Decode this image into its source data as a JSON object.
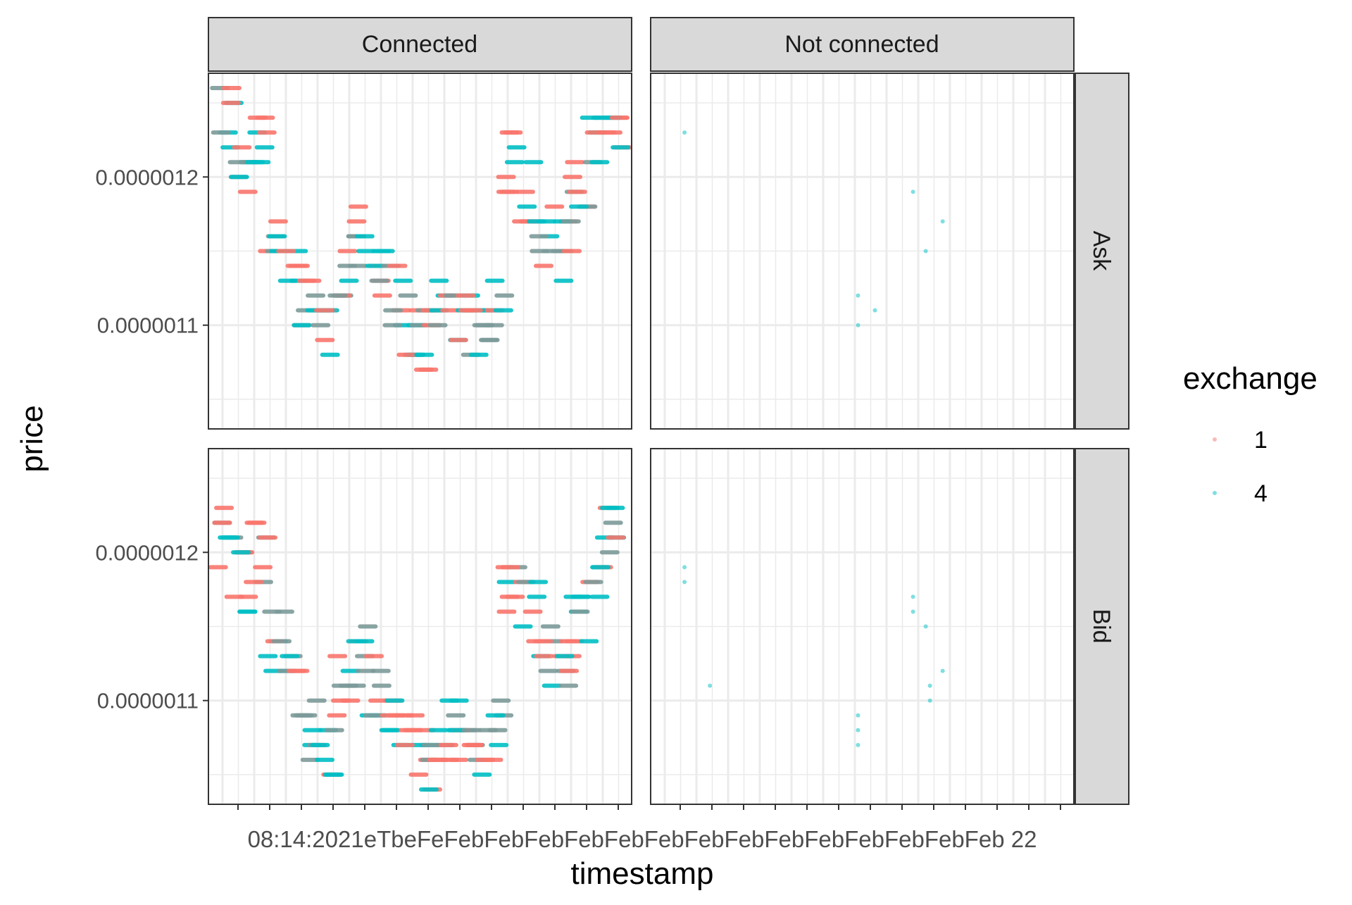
{
  "chart_data": {
    "type": "scatter",
    "facets": {
      "columns": [
        "Connected",
        "Not connected"
      ],
      "rows": [
        "Ask",
        "Bid"
      ]
    },
    "xlabel": "timestamp",
    "ylabel": "price",
    "y_tick_labels": [
      "0.0000011",
      "0.0000012"
    ],
    "y_ticks": [
      1.1e-06,
      1.2e-06
    ],
    "ylim": [
      1.03e-06,
      1.27e-06
    ],
    "x_axis_text": "08:14:2021eTbeFeFebFebFebFebFebFebFebFebFebFebFebFebFebFeb 22",
    "legend": {
      "title": "exchange",
      "entries": [
        {
          "label": "1",
          "color": "#F8766D"
        },
        {
          "label": "4",
          "color": "#00BFC4"
        }
      ],
      "position": "right"
    },
    "colors": {
      "exchange_1": "#F8766D",
      "exchange_4": "#00BFC4",
      "overlap": "#7C9A99"
    },
    "grid": true,
    "series_note_points": [
      {
        "panel": "Not connected / Ask",
        "exchange": "4",
        "points": [
          [
            0.08,
            1.23e-06
          ],
          [
            0.62,
            1.19e-06
          ],
          [
            0.65,
            1.15e-06
          ],
          [
            0.69,
            1.17e-06
          ],
          [
            0.49,
            1.12e-06
          ],
          [
            0.49,
            1.1e-06
          ],
          [
            0.53,
            1.11e-06
          ]
        ]
      },
      {
        "panel": "Not connected / Bid",
        "exchange": "4",
        "points": [
          [
            0.08,
            1.19e-06
          ],
          [
            0.08,
            1.18e-06
          ],
          [
            0.14,
            1.11e-06
          ],
          [
            0.49,
            1.09e-06
          ],
          [
            0.49,
            1.08e-06
          ],
          [
            0.49,
            1.07e-06
          ],
          [
            0.62,
            1.17e-06
          ],
          [
            0.62,
            1.16e-06
          ],
          [
            0.65,
            1.15e-06
          ],
          [
            0.66,
            1.11e-06
          ],
          [
            0.66,
            1.1e-06
          ],
          [
            0.69,
            1.12e-06
          ]
        ]
      }
    ],
    "connected_profile": {
      "x": [
        0.04,
        0.08,
        0.12,
        0.16,
        0.2,
        0.24,
        0.28,
        0.32,
        0.36,
        0.4,
        0.44,
        0.48,
        0.52,
        0.56,
        0.6,
        0.64,
        0.68,
        0.72,
        0.76,
        0.8,
        0.84,
        0.88,
        0.92,
        0.96
      ],
      "ask_center": [
        1.24e-06,
        1.21e-06,
        1.23e-06,
        1.16e-06,
        1.13e-06,
        1.11e-06,
        1.1e-06,
        1.14e-06,
        1.16e-06,
        1.14e-06,
        1.12e-06,
        1.1e-06,
        1.09e-06,
        1.11e-06,
        1.11e-06,
        1.1e-06,
        1.11e-06,
        1.21e-06,
        1.19e-06,
        1.16e-06,
        1.15e-06,
        1.19e-06,
        1.22e-06,
        1.24e-06
      ],
      "bid_center": [
        1.21e-06,
        1.18e-06,
        1.2e-06,
        1.14e-06,
        1.11e-06,
        1.08e-06,
        1.07e-06,
        1.11e-06,
        1.13e-06,
        1.11e-06,
        1.09e-06,
        1.07e-06,
        1.06e-06,
        1.08e-06,
        1.08e-06,
        1.07e-06,
        1.08e-06,
        1.18e-06,
        1.16e-06,
        1.13e-06,
        1.12e-06,
        1.16e-06,
        1.19e-06,
        1.21e-06
      ]
    }
  }
}
